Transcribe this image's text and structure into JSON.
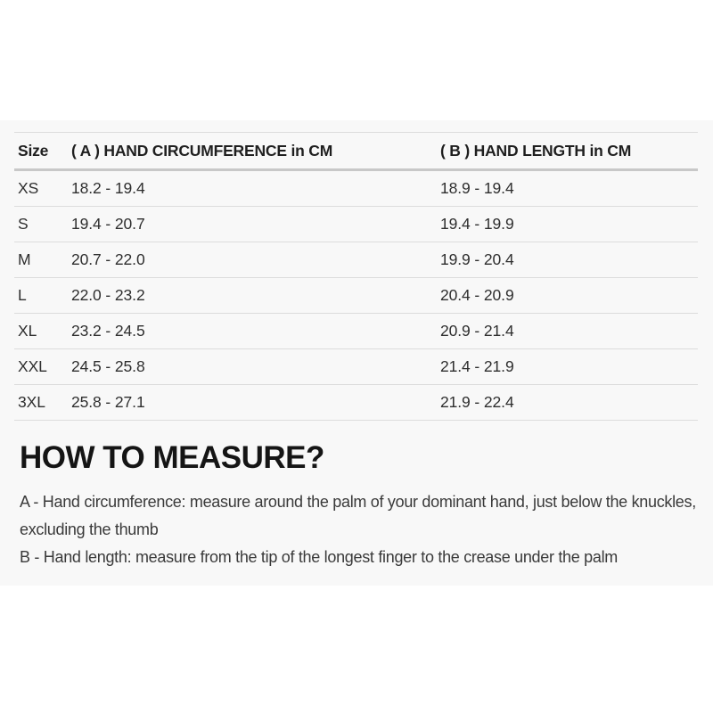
{
  "size_chart": {
    "headers": {
      "size": "Size",
      "hand_circumference": "( A ) HAND CIRCUMFERENCE in CM",
      "hand_length": "( B ) HAND LENGTH in CM"
    },
    "rows": [
      {
        "size": "XS",
        "hand_circumference_cm": "18.2 - 19.4",
        "hand_length_cm": "18.9 - 19.4"
      },
      {
        "size": "S",
        "hand_circumference_cm": "19.4 - 20.7",
        "hand_length_cm": "19.4 - 19.9"
      },
      {
        "size": "M",
        "hand_circumference_cm": "20.7 - 22.0",
        "hand_length_cm": "19.9 - 20.4"
      },
      {
        "size": "L",
        "hand_circumference_cm": "22.0 - 23.2",
        "hand_length_cm": "20.4 - 20.9"
      },
      {
        "size": "XL",
        "hand_circumference_cm": "23.2 - 24.5",
        "hand_length_cm": "20.9 - 21.4"
      },
      {
        "size": "XXL",
        "hand_circumference_cm": "24.5 - 25.8",
        "hand_length_cm": "21.4 - 21.9"
      },
      {
        "size": "3XL",
        "hand_circumference_cm": "25.8 - 27.1",
        "hand_length_cm": "21.9 - 22.4"
      }
    ]
  },
  "how_to_measure": {
    "title": "HOW TO MEASURE?",
    "instruction_a": "A - Hand circumference: measure around the palm of your dominant hand, just below the knuckles, excluding the thumb",
    "instruction_b": "B - Hand length: measure from the tip of the longest finger to the crease under the palm"
  },
  "colors": {
    "section_background": "#f8f8f8",
    "row_separator": "#dcdcdc",
    "header_underline": "#c8c8c8",
    "table_text": "#2e2e2e",
    "heading_text": "#151515",
    "body_text": "#3a3a3a"
  }
}
